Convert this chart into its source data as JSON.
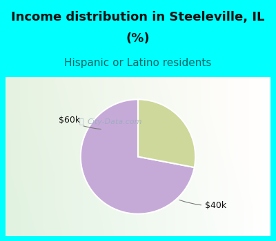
{
  "title_line1": "Income distribution in Steeleville, IL",
  "title_line2": "(%)",
  "subtitle": "Hispanic or Latino residents",
  "title_fontsize": 13,
  "subtitle_fontsize": 11,
  "slices": [
    {
      "label": "$40k",
      "value": 72,
      "color": "#C5AAD8"
    },
    {
      "label": "$60k",
      "value": 28,
      "color": "#CDD89A"
    }
  ],
  "header_bg_color": "#00FFFF",
  "title_color": "#111111",
  "subtitle_color": "#006666",
  "label_color": "#111111",
  "watermark_text": "City-Data.com",
  "watermark_color": "#99AABB",
  "start_angle": 90,
  "chart_border_color": "#00FFFF",
  "pie_edge_color": "#ffffff"
}
